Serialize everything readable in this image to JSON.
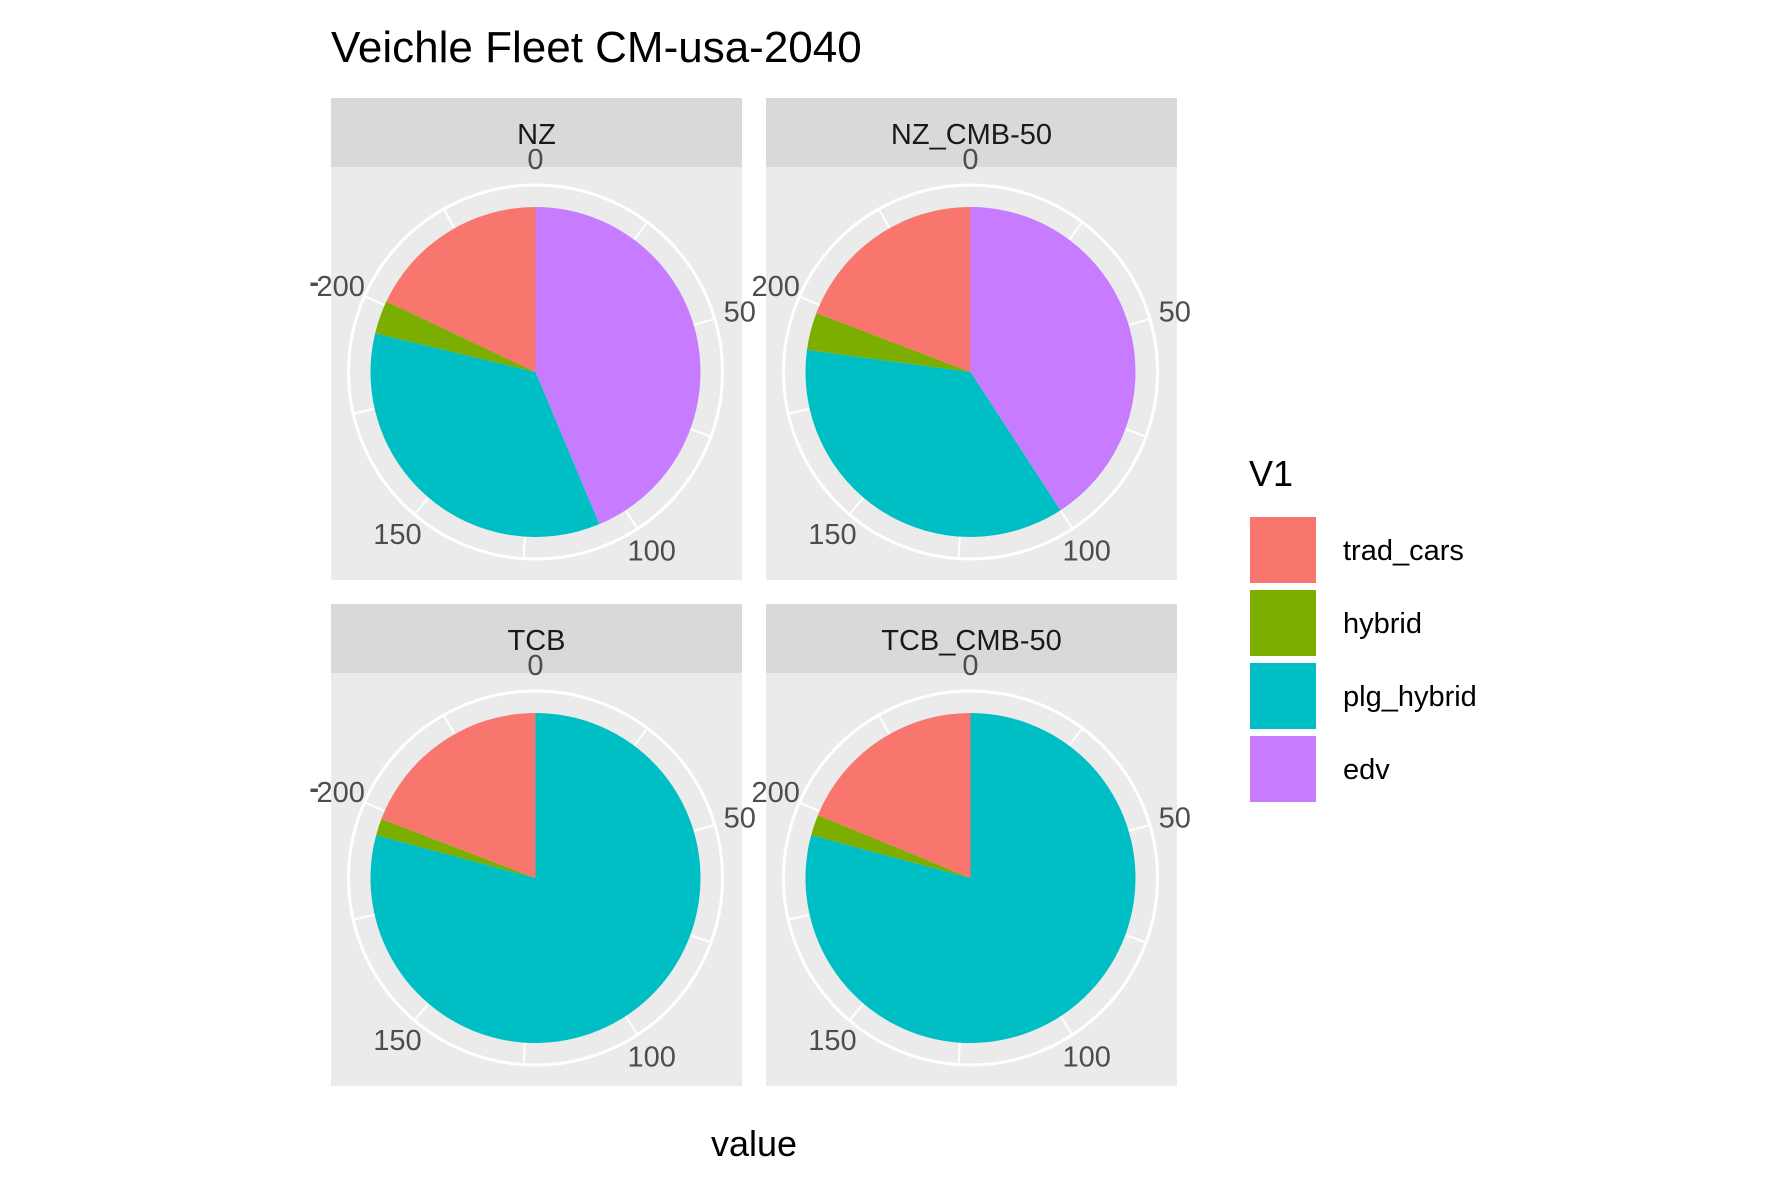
{
  "chart_data": {
    "type": "pie",
    "title": "Veichle Fleet CM-usa-2040",
    "xlabel": "value",
    "ylabel": "",
    "theta_ticks": [
      "0",
      "50",
      "100",
      "150",
      "200"
    ],
    "theta_total": 245,
    "y_tick_label": "-",
    "legend": {
      "title": "V1",
      "position": "right",
      "entries": [
        "trad_cars",
        "hybrid",
        "plg_hybrid",
        "edv"
      ]
    },
    "colors": {
      "trad_cars": "#F8766D",
      "hybrid": "#7CAE00",
      "plg_hybrid": "#00BFC4",
      "edv": "#C77CFF"
    },
    "facets": [
      {
        "name": "NZ",
        "slices": [
          {
            "category": "edv",
            "value": 107
          },
          {
            "category": "plg_hybrid",
            "value": 86
          },
          {
            "category": "hybrid",
            "value": 8
          },
          {
            "category": "trad_cars",
            "value": 44
          }
        ]
      },
      {
        "name": "NZ_CMB-50",
        "slices": [
          {
            "category": "edv",
            "value": 100
          },
          {
            "category": "plg_hybrid",
            "value": 89
          },
          {
            "category": "hybrid",
            "value": 9
          },
          {
            "category": "trad_cars",
            "value": 47
          }
        ]
      },
      {
        "name": "TCB",
        "slices": [
          {
            "category": "edv",
            "value": 0
          },
          {
            "category": "plg_hybrid",
            "value": 194
          },
          {
            "category": "hybrid",
            "value": 4
          },
          {
            "category": "trad_cars",
            "value": 47
          }
        ]
      },
      {
        "name": "TCB_CMB-50",
        "slices": [
          {
            "category": "edv",
            "value": 0
          },
          {
            "category": "plg_hybrid",
            "value": 194
          },
          {
            "category": "hybrid",
            "value": 5
          },
          {
            "category": "trad_cars",
            "value": 46
          }
        ]
      }
    ]
  }
}
